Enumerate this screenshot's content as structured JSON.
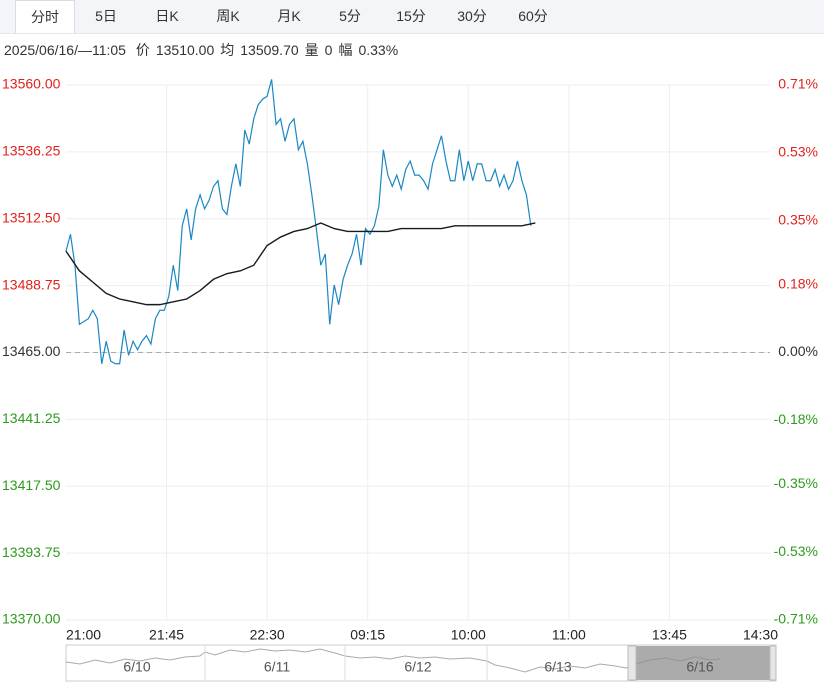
{
  "tabs": [
    "分时",
    "5日",
    "日K",
    "周K",
    "月K",
    "5分",
    "15分",
    "30分",
    "60分"
  ],
  "info": {
    "datetime": "2025/06/16/—11:05",
    "items": [
      {
        "label": "价",
        "value": "13510.00"
      },
      {
        "label": "均",
        "value": "13509.70"
      },
      {
        "label": "量",
        "value": "0"
      },
      {
        "label": "幅",
        "value": "0.33%"
      }
    ]
  },
  "chart_data": {
    "type": "line",
    "ylim": [
      13370,
      13560
    ],
    "yticks": [
      {
        "value": 13560,
        "label": "13560.00"
      },
      {
        "value": 13536.25,
        "label": "13536.25"
      },
      {
        "value": 13512.5,
        "label": "13512.50"
      },
      {
        "value": 13488.75,
        "label": "13488.75"
      },
      {
        "value": 13465,
        "label": "13465.00"
      },
      {
        "value": 13441.25,
        "label": "13441.25"
      },
      {
        "value": 13417.5,
        "label": "13417.50"
      },
      {
        "value": 13393.75,
        "label": "13393.75"
      },
      {
        "value": 13370,
        "label": "13370.00"
      }
    ],
    "y2lim": [
      -0.71,
      0.71
    ],
    "y2ticks": [
      {
        "value": 0.71,
        "label": "0.71%"
      },
      {
        "value": 0.53,
        "label": "0.53%"
      },
      {
        "value": 0.35,
        "label": "0.35%"
      },
      {
        "value": 0.18,
        "label": "0.18%"
      },
      {
        "value": 0,
        "label": "0.00%"
      },
      {
        "value": -0.18,
        "label": "-0.18%"
      },
      {
        "value": -0.35,
        "label": "-0.35%"
      },
      {
        "value": -0.53,
        "label": "-0.53%"
      },
      {
        "value": -0.71,
        "label": "-0.71%"
      }
    ],
    "xlim": [
      0,
      315
    ],
    "xticks": [
      {
        "value": 0,
        "label": "21:00"
      },
      {
        "value": 45,
        "label": "21:45"
      },
      {
        "value": 90,
        "label": "22:30"
      },
      {
        "value": 135,
        "label": "09:15"
      },
      {
        "value": 180,
        "label": "10:00"
      },
      {
        "value": 225,
        "label": "11:00"
      },
      {
        "value": 270,
        "label": "13:45"
      },
      {
        "value": 315,
        "label": "14:30"
      }
    ],
    "grid": true,
    "reference": 13465,
    "up_color": "#e3211c",
    "down_color": "#2e9a1e",
    "series": [
      {
        "color": "#1b87c3",
        "x": [
          0,
          2,
          4,
          6,
          8,
          10,
          12,
          14,
          16,
          18,
          20,
          22,
          24,
          26,
          28,
          30,
          32,
          34,
          36,
          38,
          40,
          42,
          44,
          46,
          48,
          50,
          52,
          54,
          56,
          58,
          60,
          62,
          64,
          66,
          68,
          70,
          72,
          74,
          76,
          78,
          80,
          82,
          84,
          86,
          88,
          90,
          92,
          94,
          96,
          98,
          100,
          102,
          104,
          106,
          108,
          110,
          112,
          114,
          116,
          118,
          120,
          122,
          124,
          126,
          128,
          130,
          132,
          134,
          136,
          138,
          140,
          142,
          144,
          146,
          148,
          150,
          152,
          154,
          156,
          158,
          160,
          162,
          164,
          166,
          168,
          170,
          172,
          174,
          176,
          178,
          180,
          182,
          184,
          186,
          188,
          190,
          192,
          194,
          196,
          198,
          200,
          202,
          204,
          206,
          208
        ],
        "values": [
          13501,
          13507,
          13496,
          13475,
          13476,
          13477,
          13480,
          13477,
          13461,
          13469,
          13462,
          13461,
          13461,
          13473,
          13464,
          13469,
          13466,
          13469,
          13471,
          13468,
          13477,
          13480,
          13480,
          13485,
          13496,
          13487,
          13510,
          13516,
          13505,
          13516,
          13521,
          13516,
          13519,
          13524,
          13526,
          13516,
          13514,
          13524,
          13532,
          13524,
          13544,
          13539,
          13548,
          13553,
          13555,
          13556,
          13562,
          13546,
          13548,
          13540,
          13546,
          13548,
          13537,
          13540,
          13532,
          13521,
          13509,
          13496,
          13500,
          13475,
          13489,
          13482,
          13491,
          13496,
          13500,
          13507,
          13496,
          13509,
          13507,
          13510,
          13517,
          13537,
          13528,
          13524,
          13528,
          13523,
          13530,
          13533,
          13528,
          13528,
          13526,
          13523,
          13532,
          13537,
          13542,
          13533,
          13526,
          13526,
          13537,
          13526,
          13533,
          13526,
          13532,
          13532,
          13526,
          13526,
          13530,
          13524,
          13528,
          13523,
          13526,
          13533,
          13526,
          13521,
          13510
        ]
      },
      {
        "color": "#1a1a1a",
        "x": [
          0,
          6,
          12,
          18,
          24,
          30,
          36,
          42,
          48,
          54,
          60,
          66,
          72,
          78,
          84,
          90,
          96,
          102,
          108,
          114,
          120,
          126,
          132,
          138,
          144,
          150,
          156,
          162,
          168,
          174,
          180,
          186,
          192,
          198,
          204,
          210
        ],
        "values": [
          13501,
          13494,
          13490,
          13486,
          13484,
          13483,
          13482,
          13482,
          13483,
          13484,
          13487,
          13491,
          13493,
          13494,
          13496,
          13503,
          13506,
          13508,
          13509,
          13511,
          13509,
          13508,
          13508,
          13508,
          13508,
          13509,
          13509,
          13509,
          13509,
          13510,
          13510,
          13510,
          13510,
          13510,
          13510,
          13511
        ]
      }
    ]
  },
  "navigator": {
    "labels": [
      "6/10",
      "6/11",
      "6/12",
      "6/13",
      "6/16"
    ]
  }
}
